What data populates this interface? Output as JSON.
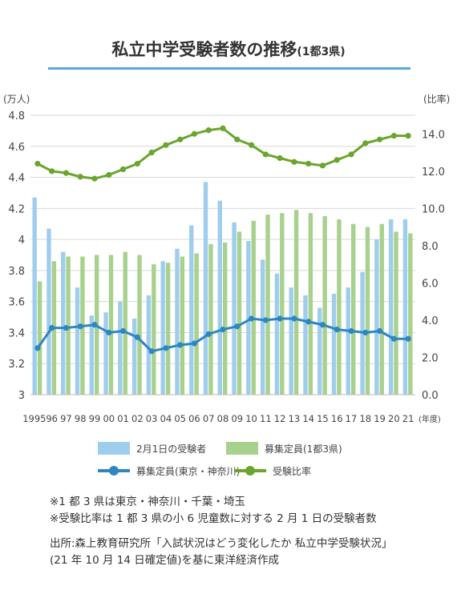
{
  "title": {
    "main": "私立中学受験者数の推移",
    "sub": "(1都3県)"
  },
  "chart_data": {
    "type": "bar+line",
    "left_axis": {
      "unit_label": "(万人)",
      "ticks": [
        "3",
        "3.2",
        "3.4",
        "3.6",
        "3.8",
        "4",
        "4.2",
        "4.4",
        "4.6",
        "4.8"
      ],
      "range": [
        3,
        4.8
      ]
    },
    "right_axis": {
      "unit_label": "(比率)",
      "ticks": [
        "0.0",
        "2.0",
        "4.0",
        "6.0",
        "8.0",
        "10.0",
        "12.0",
        "14.0"
      ],
      "range": [
        0,
        15
      ]
    },
    "x_unit_label": "(年度)",
    "categories": [
      "1995",
      "96",
      "97",
      "98",
      "99",
      "00",
      "01",
      "02",
      "03",
      "04",
      "05",
      "06",
      "07",
      "08",
      "09",
      "10",
      "11",
      "12",
      "13",
      "14",
      "15",
      "16",
      "17",
      "18",
      "19",
      "20",
      "21"
    ],
    "series": [
      {
        "name": "2月1日の受験者",
        "type": "bar",
        "axis": "left",
        "color": "#9fcdee",
        "values": [
          4.27,
          4.07,
          3.92,
          3.69,
          3.51,
          3.53,
          3.6,
          3.49,
          3.64,
          3.86,
          3.94,
          4.09,
          4.37,
          4.25,
          4.11,
          3.99,
          3.87,
          3.78,
          3.69,
          3.64,
          3.56,
          3.65,
          3.69,
          3.79,
          4.0,
          4.13,
          4.13
        ]
      },
      {
        "name": "募集定員(1都3県)",
        "type": "bar",
        "axis": "left",
        "color": "#a9d18e",
        "values": [
          3.73,
          3.86,
          3.89,
          3.89,
          3.9,
          3.9,
          3.92,
          3.9,
          3.84,
          3.85,
          3.89,
          3.91,
          3.97,
          3.98,
          4.05,
          4.12,
          4.16,
          4.17,
          4.19,
          4.17,
          4.15,
          4.13,
          4.1,
          4.08,
          4.1,
          4.05,
          4.04
        ]
      },
      {
        "name": "募集定員(東京・神奈川)",
        "type": "line",
        "axis": "left",
        "color": "#2e86c1",
        "values": [
          3.3,
          3.43,
          3.43,
          3.44,
          3.45,
          3.4,
          3.41,
          3.37,
          3.28,
          3.3,
          3.32,
          3.33,
          3.39,
          3.42,
          3.44,
          3.49,
          3.48,
          3.49,
          3.49,
          3.47,
          3.45,
          3.42,
          3.41,
          3.4,
          3.41,
          3.36,
          3.36
        ]
      },
      {
        "name": "受験比率",
        "type": "line",
        "axis": "right",
        "color": "#6aa52c",
        "values": [
          12.4,
          12.0,
          11.9,
          11.7,
          11.6,
          11.8,
          12.1,
          12.4,
          13.0,
          13.4,
          13.7,
          14.0,
          14.2,
          14.3,
          13.7,
          13.4,
          12.9,
          12.7,
          12.5,
          12.4,
          12.3,
          12.6,
          12.9,
          13.5,
          13.7,
          13.9,
          13.9
        ]
      }
    ]
  },
  "notes": [
    "※1 都 3 県は東京・神奈川・千葉・埼玉",
    "※受験比率は 1 都 3 県の小 6 児童数に対する 2 月 1 日の受験者数"
  ],
  "source": [
    "出所:森上教育研究所「入試状況はどう変化したか 私立中学受験状況」",
    "(21 年 10 月 14 日確定値)を基に東洋経済作成"
  ]
}
